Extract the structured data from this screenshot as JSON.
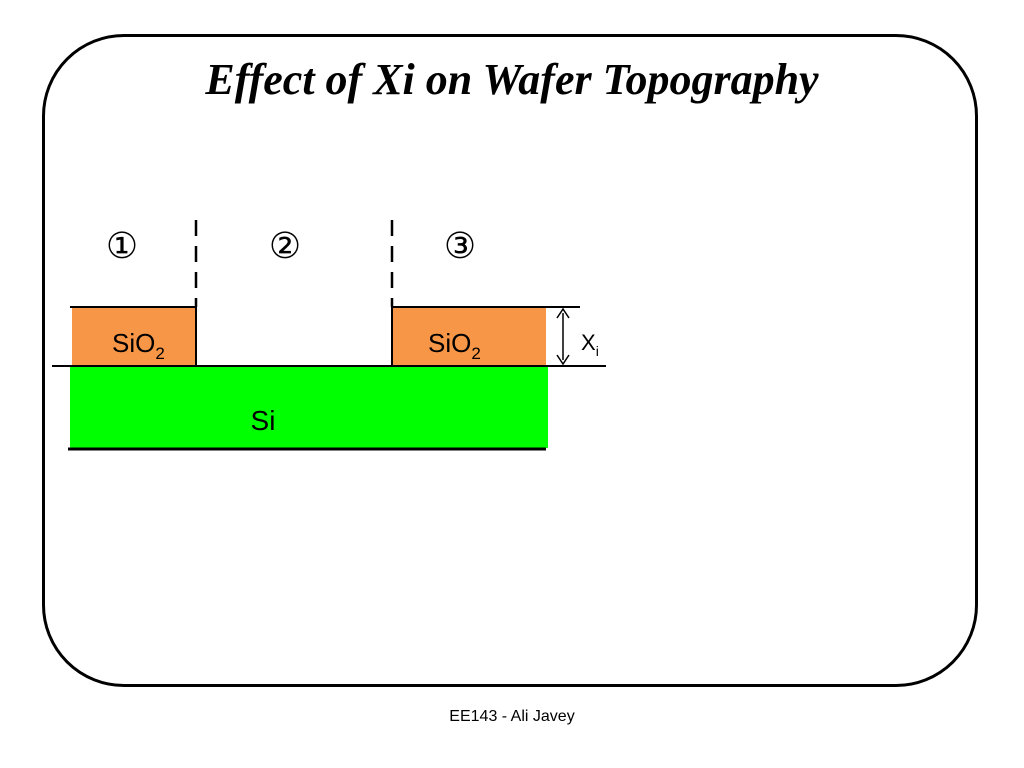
{
  "slide": {
    "title": "Effect of Xi on Wafer Topography",
    "footer": "EE143 - Ali Javey"
  },
  "diagram": {
    "regions": [
      {
        "label": "①"
      },
      {
        "label": "②"
      },
      {
        "label": "③"
      }
    ],
    "oxide": {
      "name": "SiO",
      "subscript": "2",
      "color": "#f79646"
    },
    "substrate": {
      "label": "Si",
      "color": "#00ff00"
    },
    "thickness": {
      "symbol": "X",
      "subscript": "i"
    }
  }
}
